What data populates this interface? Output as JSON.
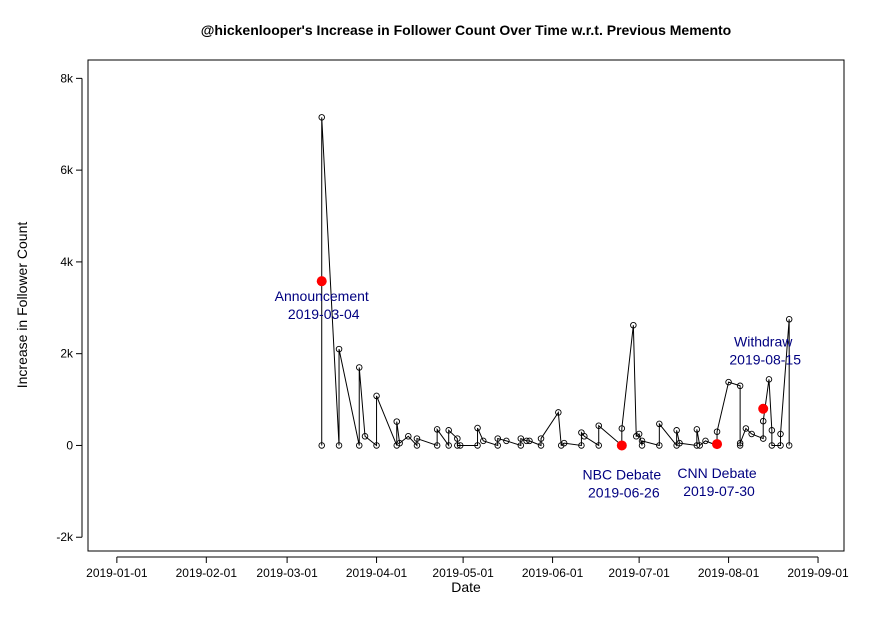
{
  "chart_data": {
    "type": "line",
    "title": "@hickenlooper's Increase in Follower Count Over Time w.r.t. Previous Memento",
    "xlabel": "Date",
    "ylabel": "Increase in Follower Count",
    "x_ticks": [
      "2019-01-01",
      "2019-02-01",
      "2019-03-01",
      "2019-04-01",
      "2019-05-01",
      "2019-06-01",
      "2019-07-01",
      "2019-08-01",
      "2019-09-01"
    ],
    "y_ticks": [
      {
        "value": -2000,
        "label": "-2k"
      },
      {
        "value": 0,
        "label": "0"
      },
      {
        "value": 2000,
        "label": "2k"
      },
      {
        "value": 4000,
        "label": "4k"
      },
      {
        "value": 6000,
        "label": "6k"
      },
      {
        "value": 8000,
        "label": "8k"
      }
    ],
    "ylim": [
      -2300,
      8400
    ],
    "xlim": [
      "2018-12-22",
      "2019-09-10"
    ],
    "grid": false,
    "colors": {
      "line": "#000000",
      "marker": "#000000",
      "event_marker": "#ff0000",
      "event_text": "#000080"
    },
    "series": [
      {
        "points": [
          [
            "2019-03-13",
            0
          ],
          [
            "2019-03-13",
            7150
          ],
          [
            "2019-03-19",
            0
          ],
          [
            "2019-03-19",
            2100
          ],
          [
            "2019-03-26",
            0
          ],
          [
            "2019-03-26",
            1700
          ],
          [
            "2019-03-28",
            200
          ],
          [
            "2019-04-01",
            0
          ],
          [
            "2019-04-01",
            1080
          ],
          [
            "2019-04-08",
            0
          ],
          [
            "2019-04-08",
            520
          ],
          [
            "2019-04-09",
            50
          ],
          [
            "2019-04-12",
            200
          ],
          [
            "2019-04-15",
            0
          ],
          [
            "2019-04-15",
            150
          ],
          [
            "2019-04-22",
            0
          ],
          [
            "2019-04-22",
            350
          ],
          [
            "2019-04-26",
            0
          ],
          [
            "2019-04-26",
            330
          ],
          [
            "2019-04-29",
            150
          ],
          [
            "2019-04-29",
            0
          ],
          [
            "2019-04-30",
            0
          ],
          [
            "2019-05-06",
            0
          ],
          [
            "2019-05-06",
            380
          ],
          [
            "2019-05-08",
            100
          ],
          [
            "2019-05-13",
            0
          ],
          [
            "2019-05-13",
            150
          ],
          [
            "2019-05-16",
            100
          ],
          [
            "2019-05-21",
            0
          ],
          [
            "2019-05-21",
            150
          ],
          [
            "2019-05-23",
            100
          ],
          [
            "2019-05-24",
            100
          ],
          [
            "2019-05-28",
            0
          ],
          [
            "2019-05-28",
            150
          ],
          [
            "2019-06-03",
            720
          ],
          [
            "2019-06-04",
            0
          ],
          [
            "2019-06-05",
            50
          ],
          [
            "2019-06-11",
            0
          ],
          [
            "2019-06-11",
            280
          ],
          [
            "2019-06-12",
            200
          ],
          [
            "2019-06-17",
            0
          ],
          [
            "2019-06-17",
            430
          ],
          [
            "2019-06-25",
            0
          ],
          [
            "2019-06-25",
            370
          ],
          [
            "2019-06-29",
            2620
          ],
          [
            "2019-06-30",
            200
          ],
          [
            "2019-07-01",
            250
          ],
          [
            "2019-07-02",
            0
          ],
          [
            "2019-07-02",
            100
          ],
          [
            "2019-07-08",
            0
          ],
          [
            "2019-07-08",
            470
          ],
          [
            "2019-07-14",
            0
          ],
          [
            "2019-07-14",
            330
          ],
          [
            "2019-07-15",
            50
          ],
          [
            "2019-07-21",
            0
          ],
          [
            "2019-07-21",
            350
          ],
          [
            "2019-07-22",
            0
          ],
          [
            "2019-07-24",
            100
          ],
          [
            "2019-07-28",
            0
          ],
          [
            "2019-07-28",
            300
          ],
          [
            "2019-08-01",
            1380
          ],
          [
            "2019-08-05",
            1300
          ],
          [
            "2019-08-05",
            0
          ],
          [
            "2019-08-05",
            50
          ],
          [
            "2019-08-07",
            370
          ],
          [
            "2019-08-09",
            250
          ],
          [
            "2019-08-13",
            150
          ],
          [
            "2019-08-13",
            530
          ],
          [
            "2019-08-15",
            1440
          ],
          [
            "2019-08-16",
            330
          ],
          [
            "2019-08-16",
            0
          ],
          [
            "2019-08-19",
            0
          ],
          [
            "2019-08-19",
            250
          ],
          [
            "2019-08-22",
            2750
          ],
          [
            "2019-08-22",
            0
          ]
        ]
      }
    ],
    "events": [
      {
        "label": "Announcement",
        "date": "2019-03-04",
        "marker_x": "2019-03-13",
        "value": 3580,
        "text_pos": "below"
      },
      {
        "label": "NBC Debate",
        "date": "2019-06-26",
        "marker_x": "2019-06-25",
        "value": 0,
        "text_pos": "below"
      },
      {
        "label": "CNN Debate",
        "date": "2019-07-30",
        "marker_x": "2019-07-28",
        "value": 30,
        "text_pos": "below"
      },
      {
        "label": "Withdraw",
        "date": "2019-08-15",
        "marker_x": "2019-08-13",
        "value": 800,
        "text_pos": "above"
      }
    ]
  }
}
